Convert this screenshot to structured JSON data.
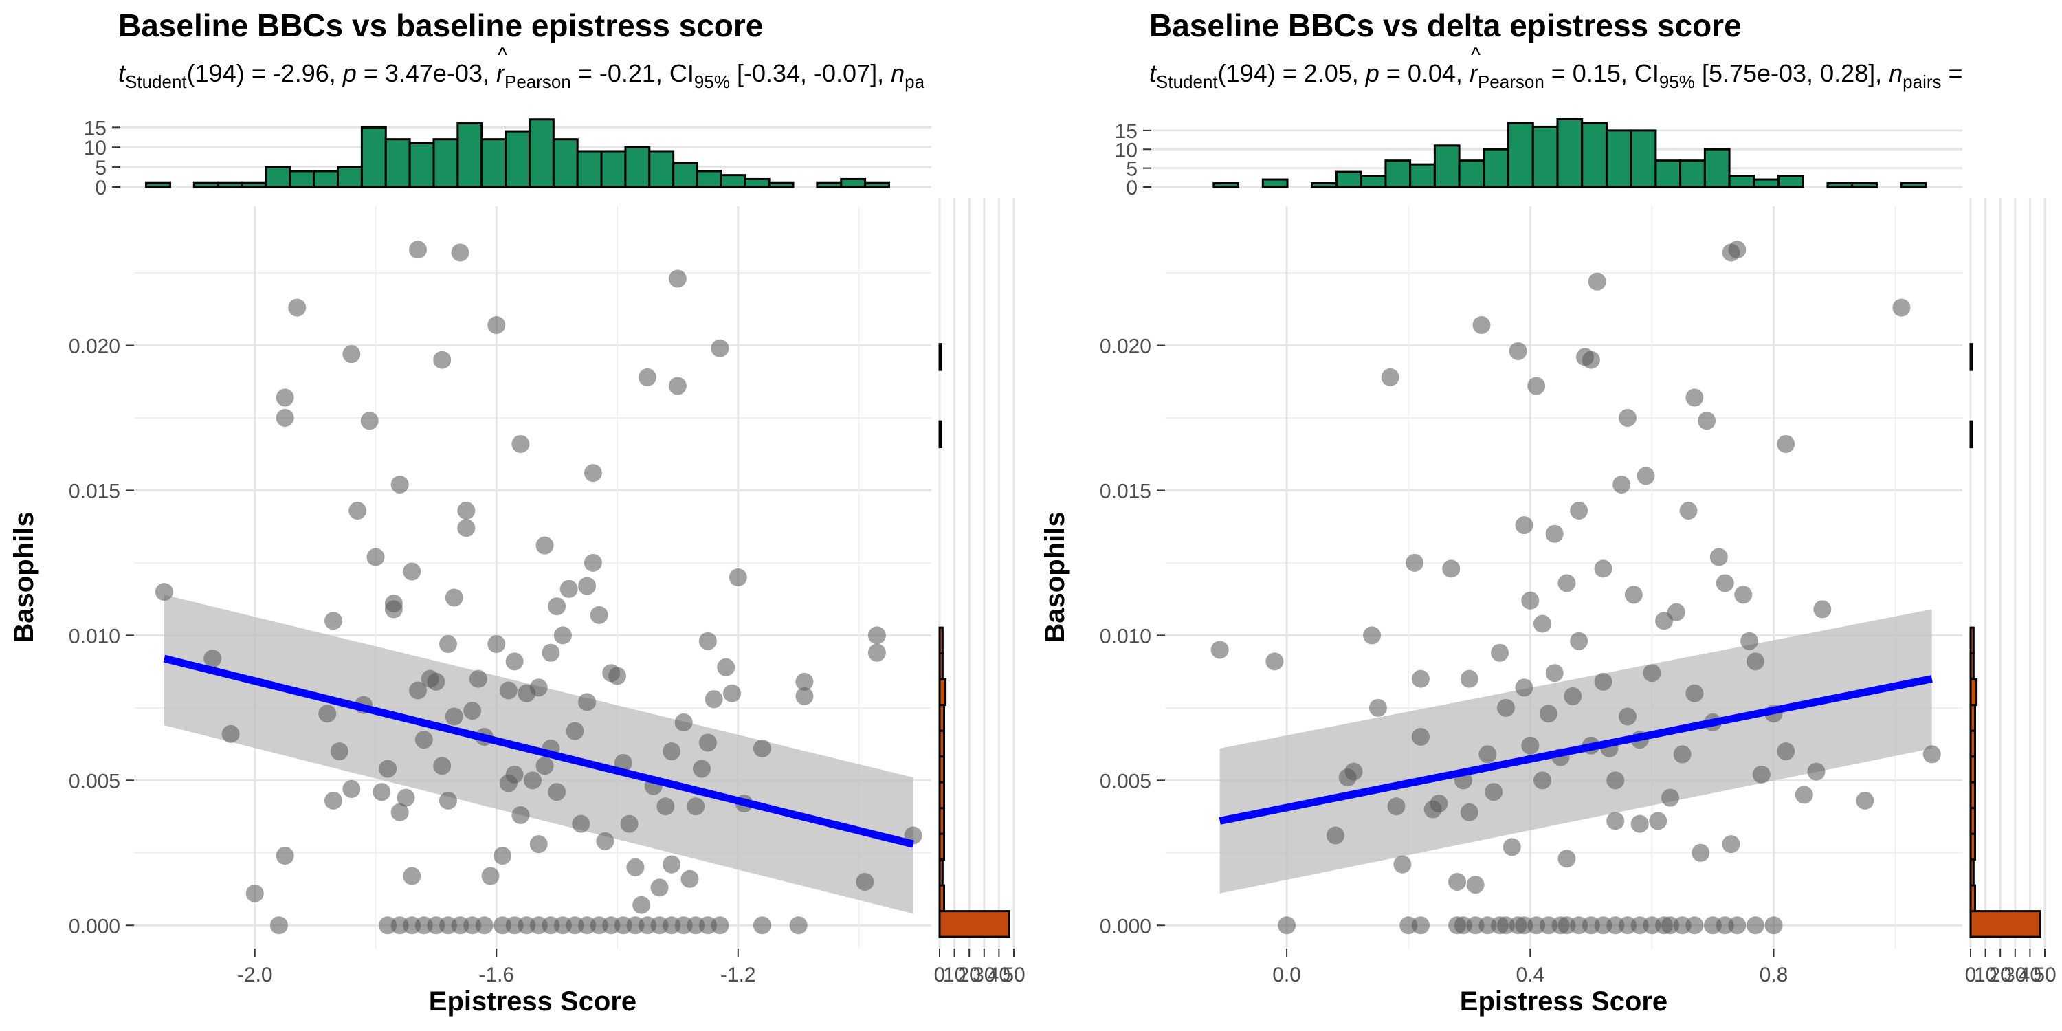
{
  "colors": {
    "point": "#555555",
    "line": "#0000ff",
    "band": "#bdbdbd",
    "top_hist": "#18905e",
    "right_hist": "#c44a0e",
    "grid": "#e6e6e6"
  },
  "chart_data": [
    {
      "type": "scatter",
      "title": "Baseline BBCs vs baseline epistress score",
      "subtitle": {
        "t_label": "t",
        "t_sub": "Student",
        "t_val": "(194) = -2.96, ",
        "p_label": "p",
        "p_val": " = 3.47e-03, ",
        "r_label": "r",
        "r_sub": "Pearson",
        "r_val": " = -0.21, CI",
        "ci_sub": "95%",
        "ci_val": " [-0.34, -0.07], ",
        "n_label": "n",
        "n_sub": "pa"
      },
      "xlabel": "Epistress Score",
      "ylabel": "Basophils",
      "xlim": [
        -2.2,
        -0.88
      ],
      "ylim": [
        -0.0008,
        0.0248
      ],
      "x_ticks": [
        "-2.0",
        "-1.6",
        "-1.2"
      ],
      "x_tick_values": [
        -2.0,
        -1.6,
        -1.2
      ],
      "y_ticks": [
        "0.000",
        "0.005",
        "0.010",
        "0.015",
        "0.020"
      ],
      "y_tick_values": [
        0.0,
        0.005,
        0.01,
        0.015,
        0.02
      ],
      "fit": {
        "x": [
          -2.15,
          -0.91
        ],
        "y": [
          0.0092,
          0.0028
        ],
        "band_lower": [
          0.0069,
          0.0004
        ],
        "band_upper": [
          0.0114,
          0.0051
        ]
      },
      "points": [
        [
          -2.15,
          0.0115
        ],
        [
          -2.07,
          0.0092
        ],
        [
          -2.04,
          0.0066
        ],
        [
          -2.0,
          0.0011
        ],
        [
          -1.96,
          0.0
        ],
        [
          -1.95,
          0.0024
        ],
        [
          -1.93,
          0.0213
        ],
        [
          -1.95,
          0.0182
        ],
        [
          -1.95,
          0.0175
        ],
        [
          -1.87,
          0.0043
        ],
        [
          -1.86,
          0.006
        ],
        [
          -1.88,
          0.0073
        ],
        [
          -1.87,
          0.0105
        ],
        [
          -1.84,
          0.0197
        ],
        [
          -1.84,
          0.0047
        ],
        [
          -1.83,
          0.0143
        ],
        [
          -1.82,
          0.0076
        ],
        [
          -1.81,
          0.0174
        ],
        [
          -1.8,
          0.0127
        ],
        [
          -1.79,
          0.0046
        ],
        [
          -1.78,
          0.0054
        ],
        [
          -1.77,
          0.0111
        ],
        [
          -1.77,
          0.0109
        ],
        [
          -1.76,
          0.0152
        ],
        [
          -1.76,
          0.0039
        ],
        [
          -1.75,
          0.0044
        ],
        [
          -1.74,
          0.0122
        ],
        [
          -1.74,
          0.0017
        ],
        [
          -1.73,
          0.0233
        ],
        [
          -1.73,
          0.0081
        ],
        [
          -1.72,
          0.0064
        ],
        [
          -1.71,
          0.0085
        ],
        [
          -1.7,
          0.0084
        ],
        [
          -1.69,
          0.0195
        ],
        [
          -1.69,
          0.0055
        ],
        [
          -1.68,
          0.0097
        ],
        [
          -1.68,
          0.0043
        ],
        [
          -1.67,
          0.0113
        ],
        [
          -1.67,
          0.0072
        ],
        [
          -1.66,
          0.0232
        ],
        [
          -1.65,
          0.0143
        ],
        [
          -1.65,
          0.0137
        ],
        [
          -1.64,
          0.0074
        ],
        [
          -1.63,
          0.0085
        ],
        [
          -1.62,
          0.0065
        ],
        [
          -1.61,
          0.0017
        ],
        [
          -1.6,
          0.0097
        ],
        [
          -1.6,
          0.0207
        ],
        [
          -1.59,
          0.0024
        ],
        [
          -1.58,
          0.0049
        ],
        [
          -1.58,
          0.0081
        ],
        [
          -1.57,
          0.0091
        ],
        [
          -1.57,
          0.0052
        ],
        [
          -1.56,
          0.0166
        ],
        [
          -1.56,
          0.0038
        ],
        [
          -1.55,
          0.008
        ],
        [
          -1.54,
          0.005
        ],
        [
          -1.53,
          0.0082
        ],
        [
          -1.53,
          0.0028
        ],
        [
          -1.52,
          0.0055
        ],
        [
          -1.52,
          0.0131
        ],
        [
          -1.51,
          0.0094
        ],
        [
          -1.51,
          0.0061
        ],
        [
          -1.5,
          0.011
        ],
        [
          -1.5,
          0.0046
        ],
        [
          -1.49,
          0.01
        ],
        [
          -1.48,
          0.0116
        ],
        [
          -1.47,
          0.0067
        ],
        [
          -1.46,
          0.0035
        ],
        [
          -1.45,
          0.0077
        ],
        [
          -1.45,
          0.0117
        ],
        [
          -1.44,
          0.0156
        ],
        [
          -1.44,
          0.0125
        ],
        [
          -1.43,
          0.0107
        ],
        [
          -1.42,
          0.0029
        ],
        [
          -1.41,
          0.0087
        ],
        [
          -1.4,
          0.0086
        ],
        [
          -1.39,
          0.0056
        ],
        [
          -1.38,
          0.0035
        ],
        [
          -1.37,
          0.002
        ],
        [
          -1.36,
          0.0007
        ],
        [
          -1.35,
          0.0189
        ],
        [
          -1.34,
          0.0048
        ],
        [
          -1.33,
          0.0013
        ],
        [
          -1.32,
          0.0041
        ],
        [
          -1.31,
          0.006
        ],
        [
          -1.31,
          0.0021
        ],
        [
          -1.3,
          0.0223
        ],
        [
          -1.3,
          0.0186
        ],
        [
          -1.29,
          0.007
        ],
        [
          -1.28,
          0.0016
        ],
        [
          -1.27,
          0.0041
        ],
        [
          -1.26,
          0.0054
        ],
        [
          -1.25,
          0.0063
        ],
        [
          -1.25,
          0.0098
        ],
        [
          -1.24,
          0.0078
        ],
        [
          -1.23,
          0.0199
        ],
        [
          -1.22,
          0.0089
        ],
        [
          -1.21,
          0.008
        ],
        [
          -1.2,
          0.012
        ],
        [
          -1.19,
          0.0042
        ],
        [
          -1.16,
          0.0061
        ],
        [
          -1.09,
          0.0079
        ],
        [
          -1.09,
          0.0084
        ],
        [
          -1.1,
          0.0
        ],
        [
          -0.99,
          0.0015
        ],
        [
          -0.97,
          0.01
        ],
        [
          -0.97,
          0.0094
        ],
        [
          -0.91,
          0.0031
        ]
      ],
      "zero_points": [
        -1.78,
        -1.76,
        -1.74,
        -1.72,
        -1.7,
        -1.68,
        -1.66,
        -1.64,
        -1.62,
        -1.59,
        -1.57,
        -1.55,
        -1.53,
        -1.51,
        -1.49,
        -1.47,
        -1.45,
        -1.43,
        -1.41,
        -1.39,
        -1.37,
        -1.35,
        -1.33,
        -1.31,
        -1.29,
        -1.27,
        -1.25,
        -1.23,
        -1.16
      ],
      "top_hist": {
        "range": [
          -2.18,
          -0.95
        ],
        "counts": [
          1,
          0,
          1,
          1,
          1,
          5,
          4,
          4,
          5,
          15,
          12,
          11,
          12,
          16,
          12,
          14,
          17,
          12,
          9,
          9,
          10,
          9,
          6,
          4,
          3,
          2,
          1,
          0,
          1,
          2,
          1
        ],
        "ticks": [
          "0",
          "5",
          "10",
          "15"
        ],
        "tick_values": [
          0,
          5,
          10,
          15
        ],
        "ymax": 18
      },
      "right_hist": {
        "range": [
          -0.0004,
          0.0236
        ],
        "counts": [
          47,
          3,
          2,
          3,
          3,
          3,
          3,
          3,
          3,
          4,
          2,
          2,
          0,
          0,
          0,
          0,
          0,
          0,
          0,
          1,
          0,
          0,
          1,
          0,
          0,
          0,
          0
        ],
        "ticks": [
          "0",
          "10",
          "20",
          "30",
          "40",
          "50"
        ],
        "tick_values": [
          0,
          10,
          20,
          30,
          40,
          50
        ],
        "xmax": 50
      }
    },
    {
      "type": "scatter",
      "title": "Baseline BBCs vs delta epistress score",
      "subtitle": {
        "t_label": "t",
        "t_sub": "Student",
        "t_val": "(194) = 2.05, ",
        "p_label": "p",
        "p_val": " = 0.04, ",
        "r_label": "r",
        "r_sub": "Pearson",
        "r_val": " = 0.15, CI",
        "ci_sub": "95%",
        "ci_val": " [5.75e-03, 0.28], ",
        "n_label": "n",
        "n_sub": "pairs",
        "n_val": " ="
      },
      "xlabel": "Epistress Score",
      "ylabel": "Basophils",
      "xlim": [
        -0.2,
        1.11
      ],
      "ylim": [
        -0.0008,
        0.0248
      ],
      "x_ticks": [
        "0.0",
        "0.4",
        "0.8"
      ],
      "x_tick_values": [
        0.0,
        0.4,
        0.8
      ],
      "y_ticks": [
        "0.000",
        "0.005",
        "0.010",
        "0.015",
        "0.020"
      ],
      "y_tick_values": [
        0.0,
        0.005,
        0.01,
        0.015,
        0.02
      ],
      "fit": {
        "x": [
          -0.11,
          1.06
        ],
        "y": [
          0.0036,
          0.0085
        ],
        "band_lower": [
          0.0011,
          0.0061
        ],
        "band_upper": [
          0.0061,
          0.0109
        ]
      },
      "points": [
        [
          -0.11,
          0.0095
        ],
        [
          -0.02,
          0.0091
        ],
        [
          -0.0,
          0.0
        ],
        [
          0.08,
          0.0031
        ],
        [
          0.1,
          0.0051
        ],
        [
          0.11,
          0.0053
        ],
        [
          0.14,
          0.01
        ],
        [
          0.15,
          0.0075
        ],
        [
          0.17,
          0.0189
        ],
        [
          0.18,
          0.0041
        ],
        [
          0.19,
          0.0021
        ],
        [
          0.21,
          0.0125
        ],
        [
          0.22,
          0.0085
        ],
        [
          0.22,
          0.0065
        ],
        [
          0.24,
          0.004
        ],
        [
          0.25,
          0.0042
        ],
        [
          0.27,
          0.0123
        ],
        [
          0.28,
          0.0015
        ],
        [
          0.29,
          0.005
        ],
        [
          0.3,
          0.0085
        ],
        [
          0.3,
          0.0039
        ],
        [
          0.31,
          0.0014
        ],
        [
          0.32,
          0.0207
        ],
        [
          0.33,
          0.0059
        ],
        [
          0.34,
          0.0046
        ],
        [
          0.35,
          0.0094
        ],
        [
          0.36,
          0.0075
        ],
        [
          0.37,
          0.0027
        ],
        [
          0.38,
          0.0198
        ],
        [
          0.39,
          0.0138
        ],
        [
          0.39,
          0.0082
        ],
        [
          0.4,
          0.0112
        ],
        [
          0.4,
          0.0062
        ],
        [
          0.41,
          0.0186
        ],
        [
          0.42,
          0.0104
        ],
        [
          0.42,
          0.005
        ],
        [
          0.43,
          0.0073
        ],
        [
          0.44,
          0.0135
        ],
        [
          0.44,
          0.0087
        ],
        [
          0.45,
          0.0058
        ],
        [
          0.46,
          0.0023
        ],
        [
          0.46,
          0.0118
        ],
        [
          0.47,
          0.0079
        ],
        [
          0.48,
          0.0098
        ],
        [
          0.48,
          0.0143
        ],
        [
          0.49,
          0.0196
        ],
        [
          0.5,
          0.0195
        ],
        [
          0.5,
          0.0062
        ],
        [
          0.51,
          0.0222
        ],
        [
          0.52,
          0.0123
        ],
        [
          0.52,
          0.0084
        ],
        [
          0.53,
          0.0061
        ],
        [
          0.54,
          0.0036
        ],
        [
          0.54,
          0.005
        ],
        [
          0.55,
          0.0152
        ],
        [
          0.56,
          0.0175
        ],
        [
          0.56,
          0.0072
        ],
        [
          0.57,
          0.0114
        ],
        [
          0.58,
          0.0064
        ],
        [
          0.58,
          0.0035
        ],
        [
          0.59,
          0.0155
        ],
        [
          0.6,
          0.0087
        ],
        [
          0.61,
          0.0036
        ],
        [
          0.62,
          0.0105
        ],
        [
          0.63,
          0.0044
        ],
        [
          0.64,
          0.0108
        ],
        [
          0.65,
          0.0059
        ],
        [
          0.66,
          0.0143
        ],
        [
          0.67,
          0.0182
        ],
        [
          0.67,
          0.008
        ],
        [
          0.68,
          0.0025
        ],
        [
          0.69,
          0.0174
        ],
        [
          0.7,
          0.007
        ],
        [
          0.71,
          0.0127
        ],
        [
          0.72,
          0.0118
        ],
        [
          0.73,
          0.0232
        ],
        [
          0.73,
          0.0028
        ],
        [
          0.74,
          0.0233
        ],
        [
          0.75,
          0.0114
        ],
        [
          0.76,
          0.0098
        ],
        [
          0.77,
          0.0091
        ],
        [
          0.78,
          0.0052
        ],
        [
          0.8,
          0.0073
        ],
        [
          0.82,
          0.006
        ],
        [
          0.82,
          0.0166
        ],
        [
          0.85,
          0.0045
        ],
        [
          0.87,
          0.0053
        ],
        [
          0.88,
          0.0109
        ],
        [
          0.95,
          0.0043
        ],
        [
          1.01,
          0.0213
        ],
        [
          1.06,
          0.0059
        ]
      ],
      "zero_points": [
        0.2,
        0.22,
        0.28,
        0.29,
        0.31,
        0.33,
        0.35,
        0.36,
        0.38,
        0.39,
        0.41,
        0.43,
        0.45,
        0.46,
        0.48,
        0.5,
        0.52,
        0.54,
        0.56,
        0.58,
        0.6,
        0.62,
        0.63,
        0.65,
        0.67,
        0.7,
        0.72,
        0.74,
        0.77,
        0.8
      ],
      "top_hist": {
        "range": [
          -0.12,
          1.05
        ],
        "counts": [
          1,
          0,
          2,
          0,
          1,
          4,
          3,
          7,
          6,
          11,
          7,
          10,
          17,
          16,
          18,
          17,
          15,
          15,
          7,
          7,
          10,
          3,
          2,
          3,
          0,
          1,
          1,
          0,
          1
        ],
        "ticks": [
          "0",
          "5",
          "10",
          "15"
        ],
        "tick_values": [
          0,
          5,
          10,
          15
        ],
        "ymax": 19
      },
      "right_hist": {
        "range": [
          -0.0004,
          0.0236
        ],
        "counts": [
          47,
          3,
          2,
          3,
          3,
          3,
          3,
          3,
          3,
          4,
          2,
          2,
          0,
          0,
          0,
          0,
          0,
          0,
          0,
          1,
          0,
          0,
          1,
          0,
          0,
          0,
          0
        ],
        "ticks": [
          "0",
          "10",
          "20",
          "30",
          "40",
          "50"
        ],
        "tick_values": [
          0,
          10,
          20,
          30,
          40,
          50
        ],
        "xmax": 50
      }
    }
  ]
}
